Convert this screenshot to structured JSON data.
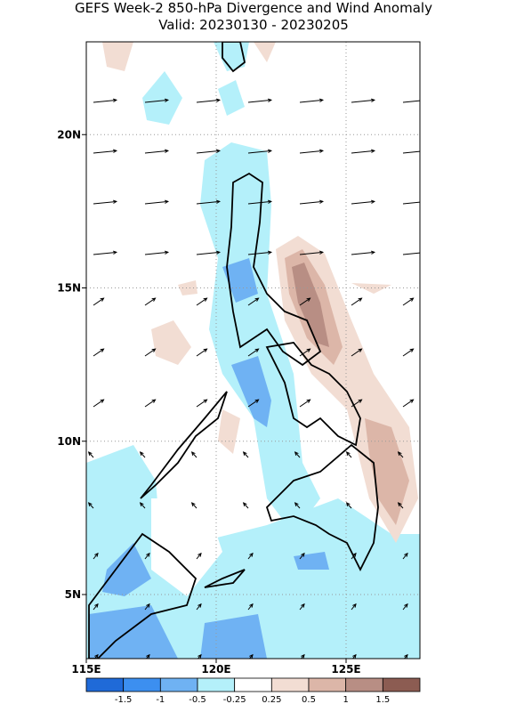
{
  "header": {
    "title": "GEFS Week-2 850-hPa Divergence and Wind Anomaly",
    "subtitle": "Valid: 20230130 - 20230205"
  },
  "map": {
    "lon_ticks": [
      {
        "value": 115,
        "label": "115E"
      },
      {
        "value": 120,
        "label": "120E"
      },
      {
        "value": 125,
        "label": "125E"
      }
    ],
    "lat_ticks": [
      {
        "value": 5,
        "label": "5N"
      },
      {
        "value": 10,
        "label": "10N"
      },
      {
        "value": 15,
        "label": "15N"
      },
      {
        "value": 20,
        "label": "20N"
      }
    ]
  },
  "colorbar": {
    "colors": [
      "#1f6ad8",
      "#3c8ff0",
      "#6fb2f3",
      "#b4f0fa",
      "#ffffff",
      "#f2ddd3",
      "#dcb6a8",
      "#b88e84",
      "#8c5c52"
    ],
    "labels": [
      "-1.5",
      "-1",
      "-0.5",
      "-0.25",
      "0.25",
      "0.5",
      "1",
      "1.5"
    ]
  }
}
